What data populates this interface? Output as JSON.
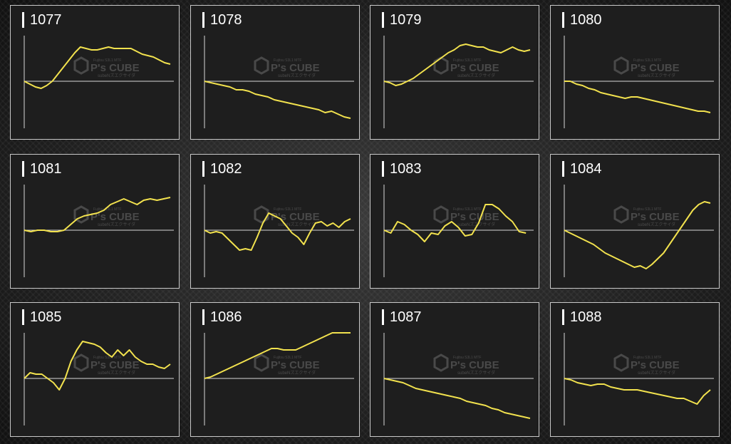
{
  "watermark": {
    "brand": "P's CUBE",
    "line1": "Fujitsu S3L1 MTF",
    "line2": "subeNズエクサイダ"
  },
  "colors": {
    "line": "#f2e24e",
    "axis": "#d8d8d8",
    "panel_bg": "#1e1e1e",
    "border": "#c8c8c8"
  },
  "chart_data": [
    {
      "type": "line",
      "title": "1077",
      "values": [
        0,
        -2,
        -4,
        -5,
        -3,
        0,
        5,
        10,
        15,
        20,
        24,
        23,
        22,
        22,
        23,
        24,
        23,
        23,
        23,
        23,
        21,
        19,
        18,
        17,
        15,
        13,
        12
      ]
    },
    {
      "type": "line",
      "title": "1078",
      "values": [
        0,
        -1,
        -2,
        -3,
        -4,
        -6,
        -6,
        -7,
        -9,
        -10,
        -11,
        -13,
        -14,
        -15,
        -16,
        -17,
        -18,
        -19,
        -20,
        -22,
        -21,
        -23,
        -25,
        -26
      ]
    },
    {
      "type": "line",
      "title": "1079",
      "values": [
        0,
        -1,
        -3,
        -2,
        0,
        2,
        5,
        8,
        11,
        14,
        17,
        20,
        22,
        25,
        26,
        25,
        24,
        24,
        22,
        21,
        20,
        22,
        24,
        22,
        21,
        22
      ]
    },
    {
      "type": "line",
      "title": "1080",
      "values": [
        0,
        0,
        -2,
        -3,
        -5,
        -6,
        -8,
        -9,
        -10,
        -11,
        -12,
        -11,
        -11,
        -12,
        -13,
        -14,
        -15,
        -16,
        -17,
        -18,
        -19,
        -20,
        -21,
        -21,
        -22
      ]
    },
    {
      "type": "line",
      "title": "1081",
      "values": [
        0,
        -1,
        0,
        0,
        -1,
        -1,
        0,
        4,
        8,
        10,
        11,
        12,
        14,
        18,
        20,
        22,
        20,
        18,
        21,
        22,
        21,
        22,
        23
      ]
    },
    {
      "type": "line",
      "title": "1082",
      "values": [
        0,
        -2,
        -1,
        -2,
        -6,
        -10,
        -14,
        -13,
        -14,
        -5,
        5,
        12,
        10,
        8,
        3,
        -2,
        -5,
        -10,
        -2,
        5,
        6,
        3,
        5,
        2,
        6,
        8
      ]
    },
    {
      "type": "line",
      "title": "1083",
      "values": [
        0,
        -2,
        6,
        4,
        0,
        -3,
        -8,
        -2,
        -3,
        3,
        6,
        2,
        -4,
        -3,
        5,
        18,
        18,
        15,
        10,
        6,
        -1,
        -2
      ]
    },
    {
      "type": "line",
      "title": "1084",
      "values": [
        0,
        -2,
        -4,
        -6,
        -8,
        -10,
        -13,
        -16,
        -18,
        -20,
        -22,
        -24,
        -26,
        -25,
        -27,
        -24,
        -20,
        -16,
        -10,
        -4,
        2,
        8,
        14,
        18,
        20,
        19
      ]
    },
    {
      "type": "line",
      "title": "1085",
      "values": [
        0,
        4,
        3,
        3,
        0,
        -3,
        -8,
        0,
        12,
        20,
        26,
        25,
        24,
        22,
        18,
        15,
        20,
        16,
        20,
        15,
        12,
        10,
        10,
        8,
        7,
        10
      ]
    },
    {
      "type": "line",
      "title": "1086",
      "values": [
        0,
        1,
        3,
        5,
        7,
        9,
        11,
        13,
        15,
        17,
        19,
        21,
        21,
        20,
        20,
        20,
        22,
        24,
        26,
        28,
        30,
        32,
        34,
        35,
        36
      ]
    },
    {
      "type": "line",
      "title": "1087",
      "values": [
        0,
        -1,
        -2,
        -3,
        -5,
        -7,
        -8,
        -9,
        -10,
        -11,
        -12,
        -13,
        -14,
        -16,
        -17,
        -18,
        -19,
        -21,
        -22,
        -24,
        -25,
        -26,
        -27,
        -28
      ]
    },
    {
      "type": "line",
      "title": "1088",
      "values": [
        0,
        -1,
        -3,
        -4,
        -5,
        -4,
        -4,
        -6,
        -7,
        -8,
        -8,
        -8,
        -9,
        -10,
        -11,
        -12,
        -13,
        -14,
        -14,
        -16,
        -18,
        -12,
        -8
      ]
    }
  ]
}
